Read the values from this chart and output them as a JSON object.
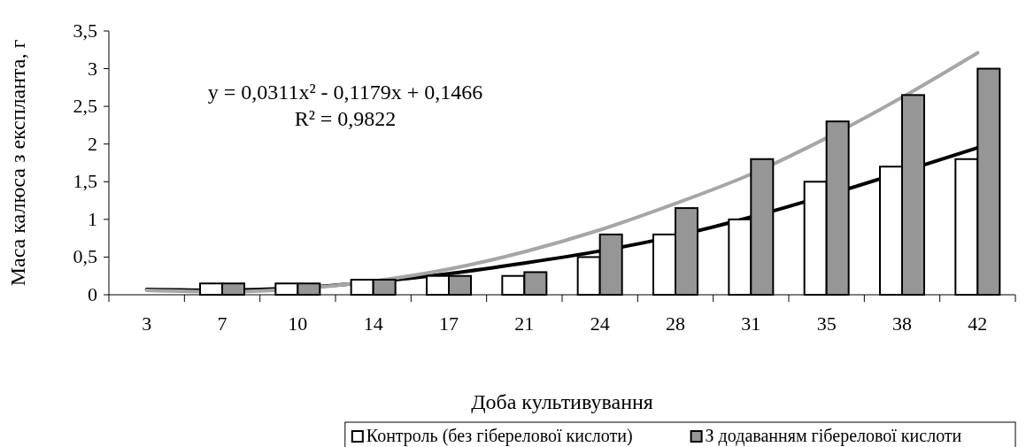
{
  "chart_data": {
    "type": "bar",
    "xlabel": "Доба культивування",
    "ylabel": "Маса калюса з експланта, г",
    "categories": [
      "3",
      "7",
      "10",
      "14",
      "17",
      "21",
      "24",
      "28",
      "31",
      "35",
      "38",
      "42"
    ],
    "series": [
      {
        "name": "Контроль (без гіберелової кислоти)",
        "color": "#ffffff",
        "values": [
          null,
          0.15,
          0.15,
          0.2,
          0.25,
          0.25,
          0.5,
          0.8,
          1.0,
          1.5,
          1.7,
          1.8
        ]
      },
      {
        "name": "З додаванням гіберелової кислоти",
        "color": "#969696",
        "values": [
          null,
          0.15,
          0.15,
          0.2,
          0.25,
          0.3,
          0.8,
          1.15,
          1.8,
          2.3,
          2.65,
          3.0
        ]
      },
      {
        "type": "line",
        "color": "#000000",
        "x": [
          "3",
          "7",
          "10",
          "14",
          "17",
          "21",
          "24",
          "28",
          "31",
          "35",
          "38",
          "42"
        ],
        "values": [
          0.07,
          0.06,
          0.09,
          0.17,
          0.28,
          0.42,
          0.58,
          0.78,
          1.03,
          1.32,
          1.63,
          1.95
        ]
      },
      {
        "type": "line",
        "color": "#a6a6a6",
        "x": [
          "3",
          "7",
          "10",
          "14",
          "17",
          "21",
          "24",
          "28",
          "31",
          "35",
          "38",
          "42"
        ],
        "values": [
          0.06,
          0.04,
          0.08,
          0.18,
          0.34,
          0.57,
          0.86,
          1.21,
          1.6,
          2.08,
          2.62,
          3.21
        ]
      }
    ],
    "ylim": [
      0,
      3.5
    ],
    "yticks": [
      0,
      {
        "value": 0.5,
        "label": "0,5"
      },
      1,
      {
        "value": 1.5,
        "label": "1,5"
      },
      2,
      {
        "value": 2.5,
        "label": "2,5"
      },
      3,
      {
        "value": 3.5,
        "label": "3,5"
      }
    ],
    "annotations": [
      "y = 0,0311x² - 0,1179x + 0,1466",
      "R² = 0,9822"
    ],
    "legend": "bottom"
  }
}
